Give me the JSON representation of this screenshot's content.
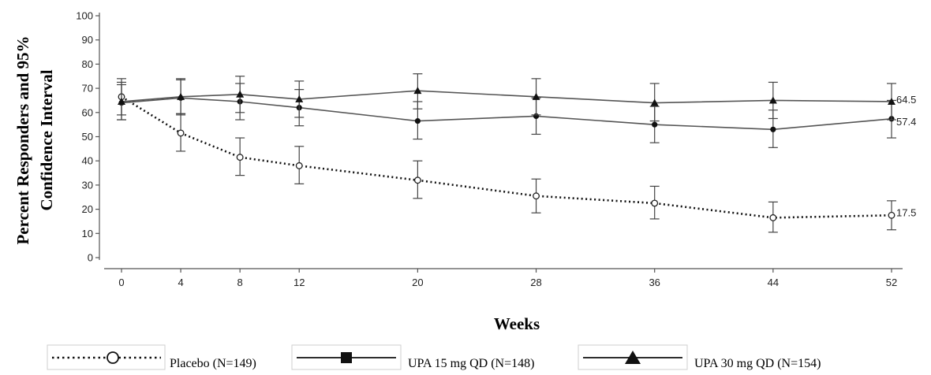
{
  "chart_data": {
    "type": "line",
    "title": "",
    "xlabel": "Weeks",
    "ylabel": [
      "Percent Responders and 95%",
      "Confidence Interval"
    ],
    "x": [
      0,
      4,
      8,
      12,
      20,
      28,
      36,
      44,
      52
    ],
    "x_tick_labels": [
      "0",
      "4",
      "8",
      "12",
      "20",
      "28",
      "36",
      "44",
      "52"
    ],
    "ylim": [
      0,
      100
    ],
    "y_ticks": [
      0,
      10,
      20,
      30,
      40,
      50,
      60,
      70,
      80,
      90,
      100
    ],
    "grid": false,
    "legend_position": "bottom",
    "series": [
      {
        "name": "Placebo (N=149)",
        "marker": "open-circle",
        "line_style": "dotted",
        "color": "#111111",
        "values": [
          66.5,
          51.5,
          41.5,
          38.0,
          32.0,
          25.5,
          22.5,
          16.5,
          17.5
        ],
        "ci_low": [
          59.0,
          44.0,
          34.0,
          30.5,
          24.5,
          18.5,
          16.0,
          10.5,
          11.5
        ],
        "ci_high": [
          74.0,
          59.5,
          49.5,
          46.0,
          40.0,
          32.5,
          29.5,
          23.0,
          23.5
        ],
        "end_label": "17.5"
      },
      {
        "name": "UPA 15 mg QD (N=148)",
        "marker": "filled-square",
        "line_style": "solid",
        "color": "#555555",
        "values": [
          64.0,
          66.0,
          64.5,
          62.0,
          56.5,
          58.5,
          55.0,
          53.0,
          57.4
        ],
        "ci_low": [
          57.0,
          59.0,
          57.0,
          54.5,
          49.0,
          51.0,
          47.5,
          45.5,
          49.5
        ],
        "ci_high": [
          71.5,
          73.5,
          72.0,
          69.5,
          64.5,
          66.0,
          62.5,
          61.0,
          65.0
        ],
        "end_label": "57.4"
      },
      {
        "name": "UPA 30 mg QD (N=154)",
        "marker": "filled-triangle",
        "line_style": "solid",
        "color": "#555555",
        "values": [
          64.5,
          66.5,
          67.5,
          65.5,
          69.0,
          66.5,
          64.0,
          65.0,
          64.5
        ],
        "ci_low": [
          57.0,
          59.5,
          60.0,
          58.0,
          61.5,
          59.0,
          56.5,
          57.5,
          57.0
        ],
        "ci_high": [
          72.5,
          74.0,
          75.0,
          73.0,
          76.0,
          74.0,
          72.0,
          72.5,
          72.0
        ],
        "end_label": "64.5"
      }
    ]
  },
  "colors": {
    "axis": "#555555",
    "text": "#222222"
  }
}
